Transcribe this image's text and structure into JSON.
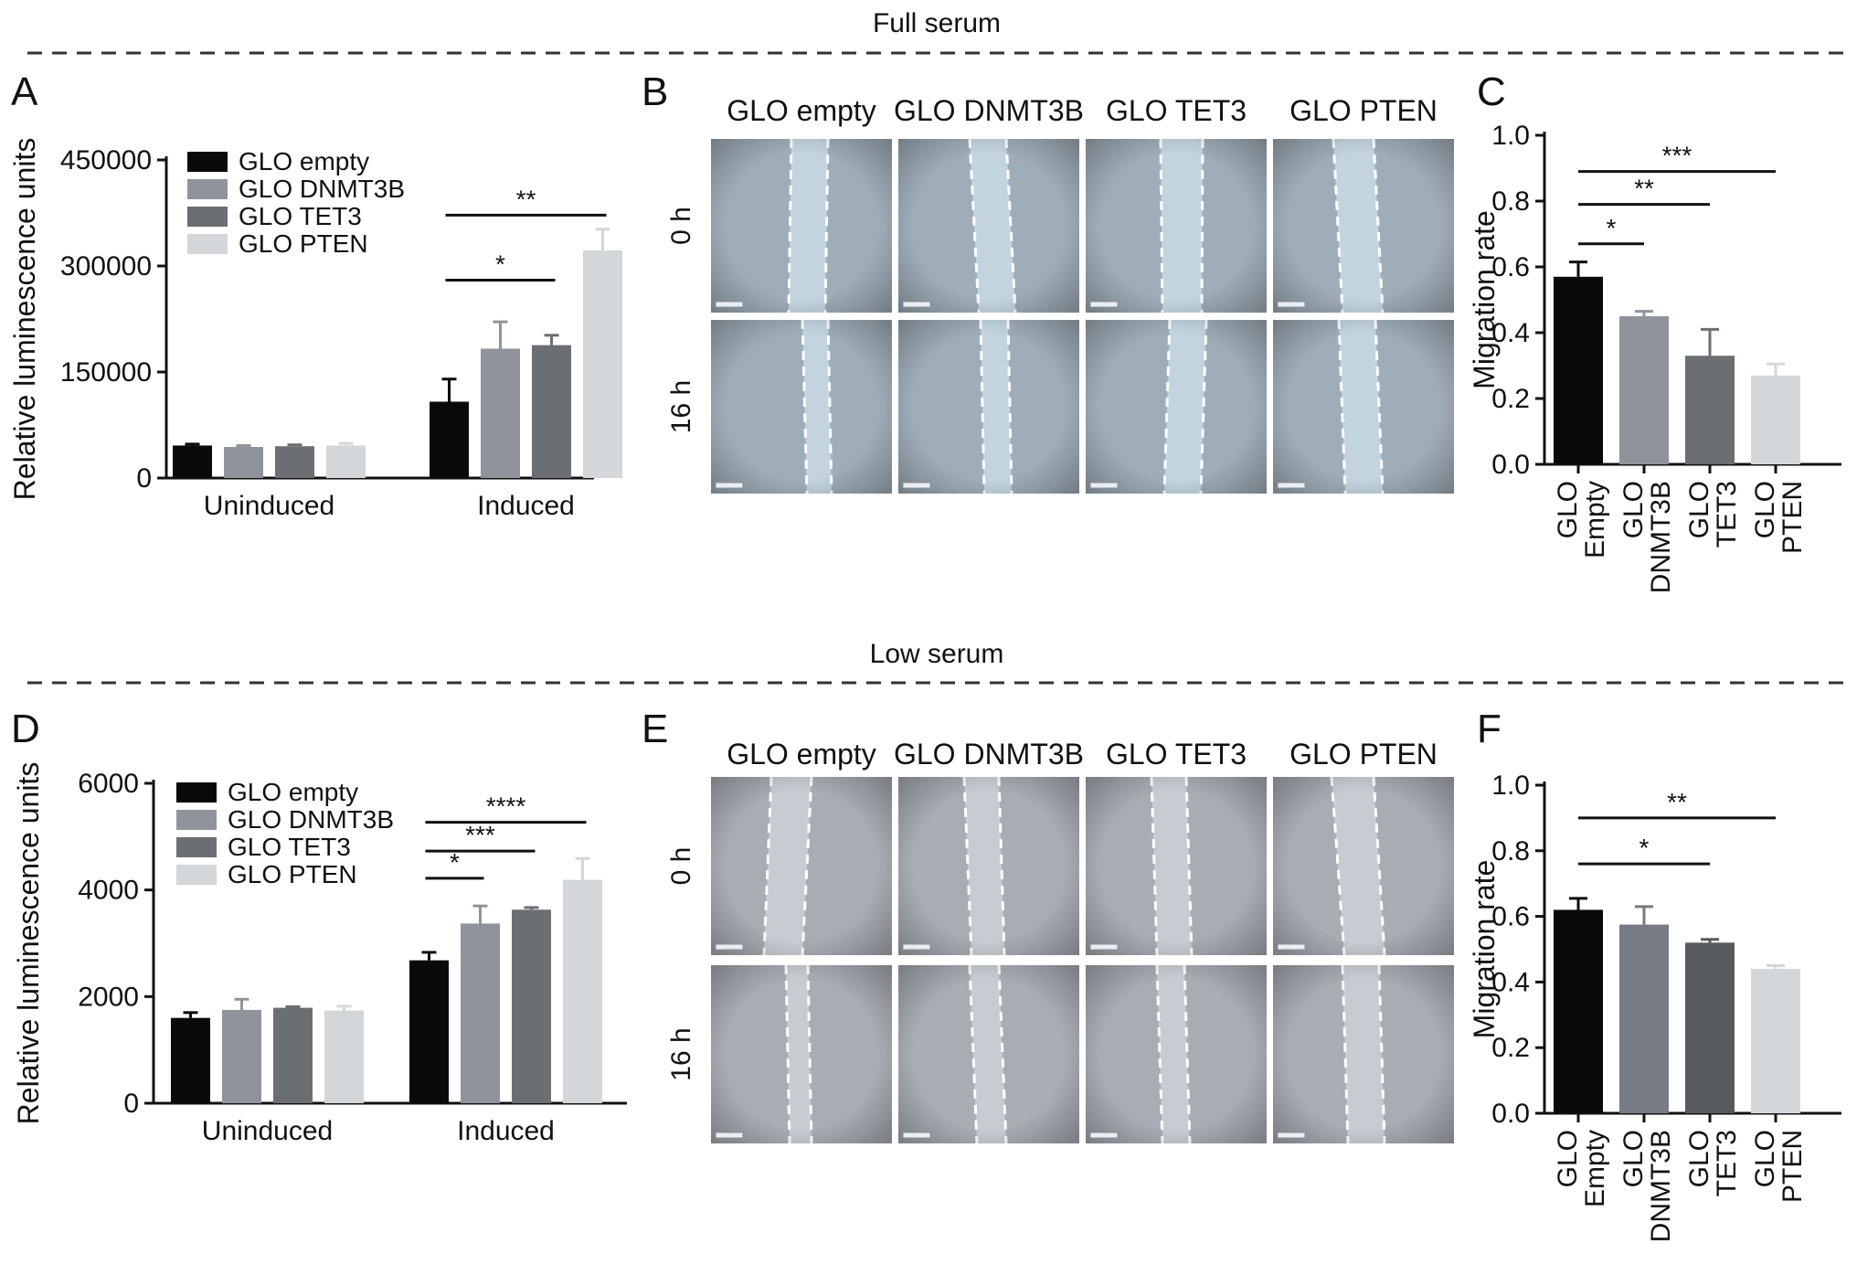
{
  "sections": [
    {
      "id": "full",
      "title": "Full serum"
    },
    {
      "id": "low",
      "title": "Low serum"
    }
  ],
  "colors": {
    "GLO empty": "#0a0a0a",
    "GLO DNMT3B": "#8e939c",
    "GLO TET3": "#6b6f73",
    "GLO PTEN": "#d3d7da",
    "DNMT3B_panelF": "#767b85",
    "TET3_panelF": "#565a5e"
  },
  "chart_data": [
    {
      "panel": "A",
      "type": "bar",
      "ylabel": "Relative luminescence units",
      "ylim": [
        0,
        450000
      ],
      "yticks": [
        0,
        150000,
        300000,
        450000
      ],
      "categories": [
        "Uninduced",
        "Induced"
      ],
      "legend": [
        "GLO empty",
        "GLO DNMT3B",
        "GLO TET3",
        "GLO PTEN"
      ],
      "legend_position": "top-left",
      "series": [
        {
          "name": "GLO empty",
          "values": [
            46000,
            108000
          ],
          "errors": [
            2000,
            32000
          ]
        },
        {
          "name": "GLO DNMT3B",
          "values": [
            44000,
            183000
          ],
          "errors": [
            2000,
            38000
          ]
        },
        {
          "name": "GLO TET3",
          "values": [
            45000,
            188000
          ],
          "errors": [
            2000,
            14000
          ]
        },
        {
          "name": "GLO PTEN",
          "values": [
            46000,
            322000
          ],
          "errors": [
            3000,
            30000
          ]
        }
      ],
      "significance": [
        {
          "label": "*",
          "from": [
            1,
            0
          ],
          "to": [
            1,
            2
          ],
          "y": 280000
        },
        {
          "label": "**",
          "from": [
            1,
            0
          ],
          "to": [
            1,
            3
          ],
          "y": 372000
        }
      ]
    },
    {
      "panel": "C",
      "type": "bar",
      "ylabel": "Migration rate",
      "ylim": [
        0,
        1.0
      ],
      "yticks": [
        "0.0",
        "0.2",
        "0.4",
        "0.6",
        "0.8",
        "1.0"
      ],
      "categories": [
        "GLO Empty",
        "GLO DNMT3B",
        "GLO TET3",
        "GLO PTEN"
      ],
      "values": [
        0.57,
        0.45,
        0.33,
        0.27
      ],
      "errors": [
        0.045,
        0.015,
        0.08,
        0.035
      ],
      "significance": [
        {
          "label": "*",
          "from": 0,
          "to": 1,
          "y": 0.67
        },
        {
          "label": "**",
          "from": 0,
          "to": 2,
          "y": 0.79
        },
        {
          "label": "***",
          "from": 0,
          "to": 3,
          "y": 0.89
        }
      ]
    },
    {
      "panel": "D",
      "type": "bar",
      "ylabel": "Relative luminescence units",
      "ylim": [
        0,
        6000
      ],
      "yticks": [
        0,
        2000,
        4000,
        6000
      ],
      "categories": [
        "Uninduced",
        "Induced"
      ],
      "legend": [
        "GLO empty",
        "GLO DNMT3B",
        "GLO TET3",
        "GLO PTEN"
      ],
      "legend_position": "top-left",
      "series": [
        {
          "name": "GLO empty",
          "values": [
            1600,
            2680
          ],
          "errors": [
            100,
            150
          ]
        },
        {
          "name": "GLO DNMT3B",
          "values": [
            1750,
            3370
          ],
          "errors": [
            200,
            330
          ]
        },
        {
          "name": "GLO TET3",
          "values": [
            1790,
            3630
          ],
          "errors": [
            20,
            40
          ]
        },
        {
          "name": "GLO PTEN",
          "values": [
            1740,
            4190
          ],
          "errors": [
            80,
            400
          ]
        }
      ],
      "significance": [
        {
          "label": "*",
          "from": [
            1,
            0
          ],
          "to": [
            1,
            1
          ],
          "y": 4220
        },
        {
          "label": "***",
          "from": [
            1,
            0
          ],
          "to": [
            1,
            2
          ],
          "y": 4730
        },
        {
          "label": "****",
          "from": [
            1,
            0
          ],
          "to": [
            1,
            3
          ],
          "y": 5270
        }
      ]
    },
    {
      "panel": "F",
      "type": "bar",
      "ylabel": "Migration rate",
      "ylim": [
        0,
        1.0
      ],
      "yticks": [
        "0.0",
        "0.2",
        "0.4",
        "0.6",
        "0.8",
        "1.0"
      ],
      "categories": [
        "GLO Empty",
        "GLO DNMT3B",
        "GLO TET3",
        "GLO PTEN"
      ],
      "values": [
        0.62,
        0.575,
        0.52,
        0.44
      ],
      "errors": [
        0.035,
        0.055,
        0.01,
        0.01
      ],
      "significance": [
        {
          "label": "*",
          "from": 0,
          "to": 2,
          "y": 0.76
        },
        {
          "label": "**",
          "from": 0,
          "to": 3,
          "y": 0.9
        }
      ]
    }
  ],
  "image_panels": [
    {
      "panel": "B",
      "columns": [
        "GLO empty",
        "GLO DNMT3B",
        "GLO TET3",
        "GLO PTEN"
      ],
      "rows": [
        "0 h",
        "16 h"
      ]
    },
    {
      "panel": "E",
      "columns": [
        "GLO empty",
        "GLO DNMT3B",
        "GLO TET3",
        "GLO PTEN"
      ],
      "rows": [
        "0 h",
        "16 h"
      ]
    }
  ]
}
